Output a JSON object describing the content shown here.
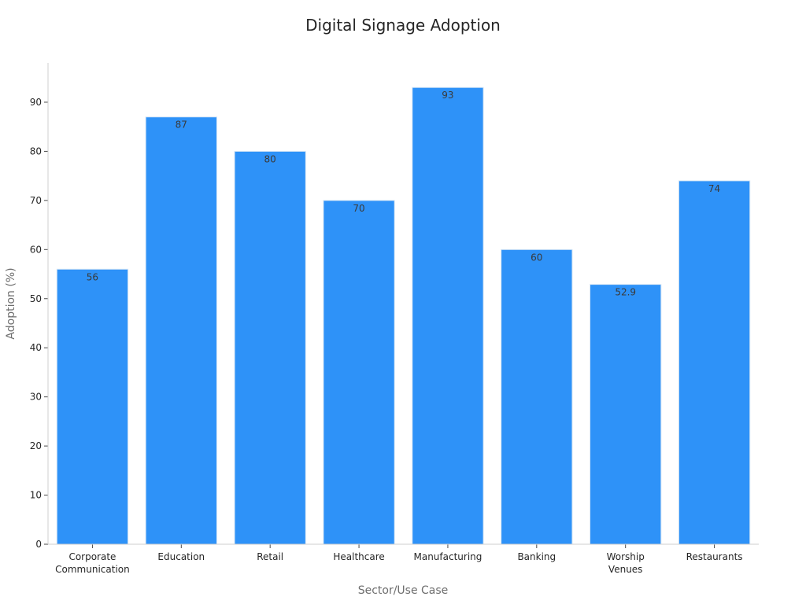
{
  "chart_data": {
    "type": "bar",
    "title": "Digital Signage Adoption",
    "xlabel": "Sector/Use Case",
    "ylabel": "Adoption (%)",
    "categories": [
      [
        "Corporate",
        "Communication"
      ],
      [
        "Education"
      ],
      [
        "Retail"
      ],
      [
        "Healthcare"
      ],
      [
        "Manufacturing"
      ],
      [
        "Banking"
      ],
      [
        "Worship",
        "Venues"
      ],
      [
        "Restaurants"
      ]
    ],
    "values": [
      56,
      87,
      80,
      70,
      93,
      60,
      52.9,
      74
    ],
    "value_labels": [
      "56",
      "87",
      "80",
      "70",
      "93",
      "60",
      "52.9",
      "74"
    ],
    "ylim": [
      0,
      98
    ],
    "yticks": [
      0,
      10,
      20,
      30,
      40,
      50,
      60,
      70,
      80,
      90
    ],
    "grid": false,
    "legend": "none",
    "colors": {
      "bar": "#2e92f8",
      "bar_edge": "#d6e6f5"
    }
  }
}
